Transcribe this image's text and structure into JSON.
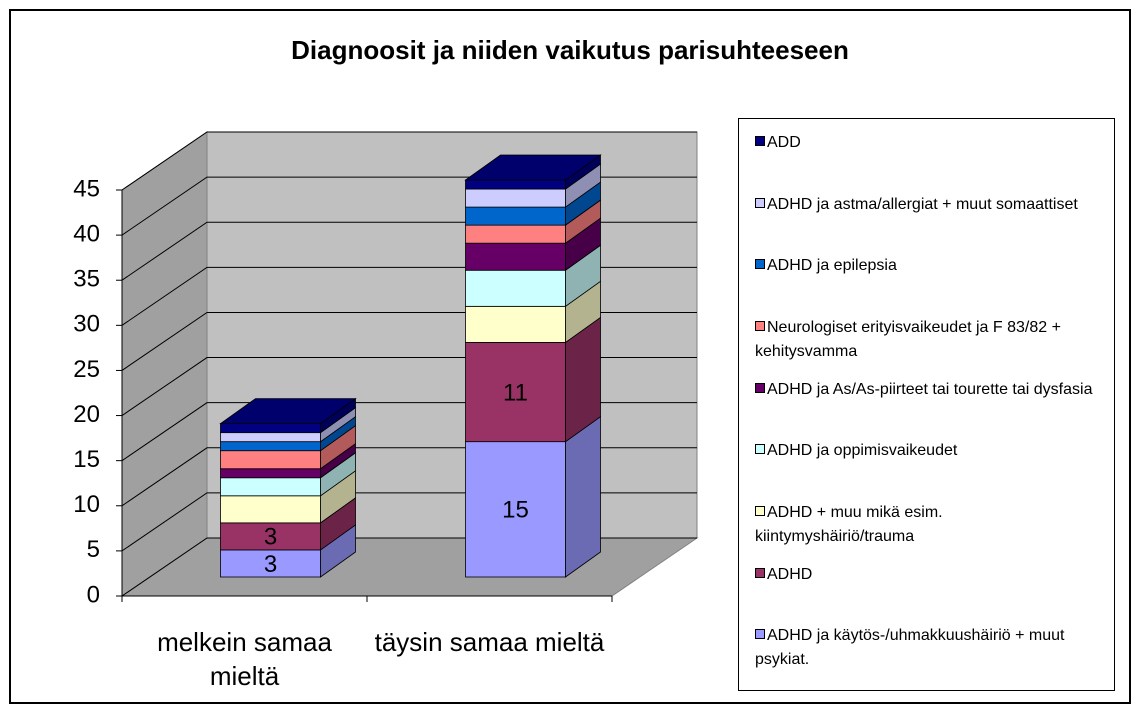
{
  "chart_data": {
    "type": "bar3d_stacked",
    "title": "Diagnoosit ja niiden vaikutus parisuhteeseen",
    "categories": [
      "melkein samaa mieltä",
      "täysin samaa mieltä"
    ],
    "series": [
      {
        "name": "ADHD ja käytös-/uhmakkuushäiriö + muut psykiat.",
        "color": "#9999ff",
        "values": [
          3,
          15
        ],
        "show_labels": true
      },
      {
        "name": "ADHD",
        "color": "#993366",
        "values": [
          3,
          11
        ],
        "show_labels": true
      },
      {
        "name": "ADHD + muu mikä esim. kiintymyshäiriö/trauma",
        "color": "#ffffcc",
        "values": [
          3,
          4
        ]
      },
      {
        "name": "ADHD ja oppimisvaikeudet",
        "color": "#ccffff",
        "values": [
          2,
          4
        ]
      },
      {
        "name": "ADHD ja As/As-piirteet tai tourette tai dysfasia",
        "color": "#660066",
        "values": [
          1,
          3
        ]
      },
      {
        "name": "Neurologiset erityisvaikeudet ja F 83/82 + kehitysvamma",
        "color": "#ff8080",
        "values": [
          2,
          2
        ]
      },
      {
        "name": "ADHD ja epilepsia",
        "color": "#0066cc",
        "values": [
          1,
          2
        ]
      },
      {
        "name": "ADHD ja astma/allergiat + muut somaattiset",
        "color": "#ccccff",
        "values": [
          1,
          2
        ]
      },
      {
        "name": "ADD",
        "color": "#000080",
        "values": [
          1,
          1
        ]
      }
    ],
    "ylim": [
      0,
      45
    ],
    "yticks": [
      0,
      5,
      10,
      15,
      20,
      25,
      30,
      35,
      40,
      45
    ],
    "grid": true,
    "legend": "right"
  }
}
